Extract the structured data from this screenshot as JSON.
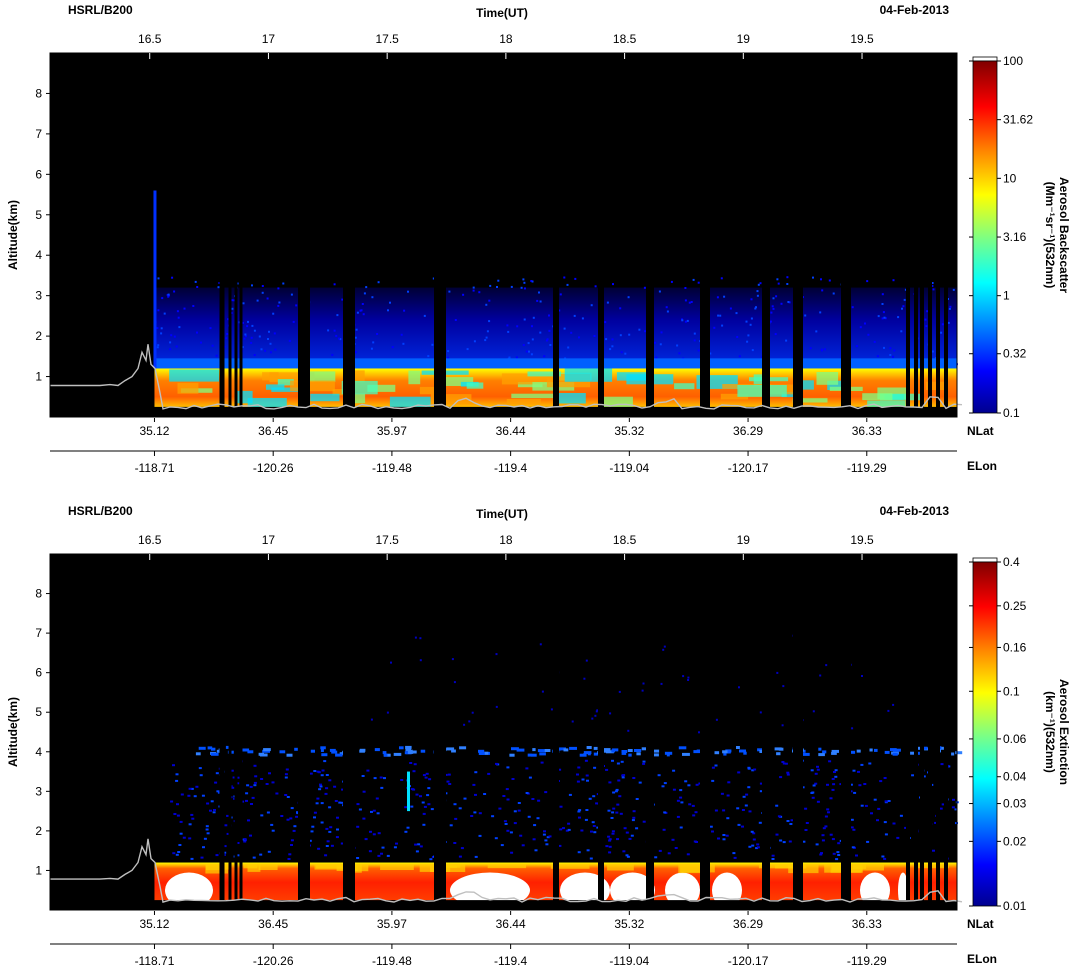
{
  "chart_data": [
    {
      "type": "heatmap",
      "instrument": "HSRL/B200",
      "date": "04-Feb-2013",
      "x_top_label": "Time(UT)",
      "x_top_ticks": [
        "16.5",
        "17",
        "17.5",
        "18",
        "18.5",
        "19",
        "19.5"
      ],
      "x_range_ut": [
        16.08,
        19.9
      ],
      "ylabel": "Altitude(km)",
      "ylim": [
        0,
        9
      ],
      "y_ticks": [
        "1",
        "2",
        "3",
        "4",
        "5",
        "6",
        "7",
        "8"
      ],
      "lat_label": "NLat",
      "lat_ticks": [
        "35.12",
        "36.45",
        "35.97",
        "36.44",
        "35.32",
        "36.29",
        "36.33"
      ],
      "lon_label": "ELon",
      "lon_ticks": [
        "-118.71",
        "-120.26",
        "-119.48",
        "-119.4",
        "-119.04",
        "-120.17",
        "-119.29"
      ],
      "colorbar_label_line1": "Aerosol Backscatter",
      "colorbar_label_line2": "(Mm⁻¹sr⁻¹)(532nm)",
      "colorbar_ticks": [
        "100",
        "31.62",
        "10",
        "3.16",
        "1",
        "0.32",
        "0.1"
      ],
      "colorbar_range": [
        0.1,
        100
      ],
      "colorbar_scale": "log",
      "layers": [
        {
          "name": "aerosol layer",
          "base_km": 0.2,
          "top_km": 1.2,
          "value": 15
        },
        {
          "name": "upper aerosol",
          "base_km": 1.2,
          "top_km": 3.0,
          "value": 0.5
        }
      ]
    },
    {
      "type": "heatmap",
      "instrument": "HSRL/B200",
      "date": "04-Feb-2013",
      "x_top_label": "Time(UT)",
      "x_top_ticks": [
        "16.5",
        "17",
        "17.5",
        "18",
        "18.5",
        "19",
        "19.5"
      ],
      "x_range_ut": [
        16.08,
        19.9
      ],
      "ylabel": "Altitude(km)",
      "ylim": [
        0,
        9
      ],
      "y_ticks": [
        "1",
        "2",
        "3",
        "4",
        "5",
        "6",
        "7",
        "8"
      ],
      "lat_label": "NLat",
      "lat_ticks": [
        "35.12",
        "36.45",
        "35.97",
        "36.44",
        "35.32",
        "36.29",
        "36.33"
      ],
      "lon_label": "ELon",
      "lon_ticks": [
        "-118.71",
        "-120.26",
        "-119.48",
        "-119.4",
        "-119.04",
        "-120.17",
        "-119.29"
      ],
      "colorbar_label_line1": "Aerosol Extinction",
      "colorbar_label_line2": "(km⁻¹)(532nm)",
      "colorbar_ticks": [
        "0.4",
        "0.25",
        "0.16",
        "0.1",
        "0.06",
        "0.04",
        "0.03",
        "0.02",
        "0.01"
      ],
      "colorbar_range": [
        0.01,
        0.4
      ],
      "colorbar_scale": "log",
      "layers": [
        {
          "name": "aerosol layer",
          "base_km": 0.2,
          "top_km": 1.2,
          "value": 0.3
        },
        {
          "name": "elevated layer",
          "base_km": 3.95,
          "top_km": 4.2,
          "value": 0.02
        }
      ]
    }
  ],
  "colors": {
    "background": "#000000",
    "colormap": [
      "#00008f",
      "#0000ff",
      "#0080ff",
      "#00ffff",
      "#80ff80",
      "#ffff00",
      "#ff8000",
      "#ff0000",
      "#800000"
    ]
  }
}
